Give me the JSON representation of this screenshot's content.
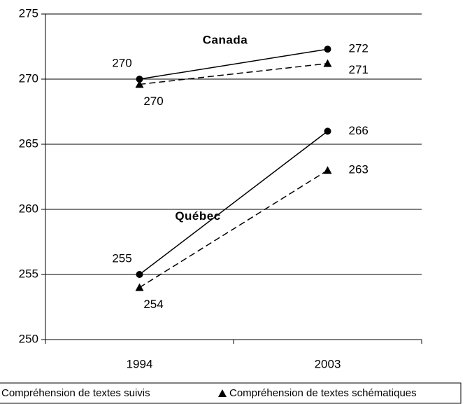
{
  "chart_data": {
    "type": "line",
    "categories": [
      "1994",
      "2003"
    ],
    "series": [
      {
        "name": "Compréhension de textes suivis",
        "region": "Canada",
        "color": "#000000",
        "dash": false,
        "marker": "circle",
        "values": [
          270,
          272.3
        ],
        "value_labels": [
          "270",
          "272"
        ]
      },
      {
        "name": "Compréhension de textes schématiques",
        "region": "Canada",
        "color": "#000000",
        "dash": true,
        "marker": "triangle",
        "values": [
          269.6,
          271.2
        ],
        "value_labels": [
          "270",
          "271"
        ]
      },
      {
        "name": "Compréhension de textes suivis",
        "region": "Québec",
        "color": "#000000",
        "dash": false,
        "marker": "circle",
        "values": [
          255,
          266
        ],
        "value_labels": [
          "255",
          "266"
        ]
      },
      {
        "name": "Compréhension de textes schématiques",
        "region": "Québec",
        "color": "#000000",
        "dash": true,
        "marker": "triangle",
        "values": [
          254,
          263
        ],
        "value_labels": [
          "254",
          "263"
        ]
      }
    ],
    "ylim": [
      250,
      275
    ],
    "yticks": [
      250,
      255,
      260,
      265,
      270,
      275
    ],
    "grid": true
  }
}
